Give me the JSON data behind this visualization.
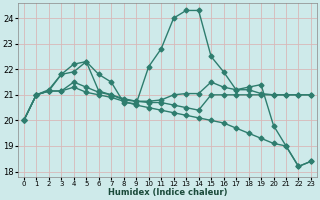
{
  "xlabel": "Humidex (Indice chaleur)",
  "bg_color": "#ceeaea",
  "grid_color": "#b8d8d8",
  "line_color": "#2e7d6e",
  "xlim": [
    -0.5,
    23.5
  ],
  "ylim": [
    17.8,
    24.6
  ],
  "yticks": [
    18,
    19,
    20,
    21,
    22,
    23,
    24
  ],
  "xticks": [
    0,
    1,
    2,
    3,
    4,
    5,
    6,
    7,
    8,
    9,
    10,
    11,
    12,
    13,
    14,
    15,
    16,
    17,
    18,
    19,
    20,
    21,
    22,
    23
  ],
  "series": [
    [
      20.0,
      21.0,
      21.2,
      21.8,
      22.2,
      22.3,
      21.8,
      21.5,
      20.7,
      20.65,
      22.1,
      22.8,
      24.0,
      24.3,
      24.3,
      22.5,
      21.9,
      21.2,
      21.3,
      21.4,
      19.8,
      19.0,
      18.2,
      18.4
    ],
    [
      20.0,
      21.0,
      21.15,
      21.8,
      21.9,
      22.3,
      21.15,
      21.0,
      20.8,
      20.75,
      20.75,
      20.8,
      21.0,
      21.05,
      21.05,
      21.5,
      21.3,
      21.2,
      21.2,
      21.05,
      21.0,
      21.0,
      21.0,
      21.0
    ],
    [
      20.0,
      21.0,
      21.15,
      21.15,
      21.5,
      21.3,
      21.1,
      21.0,
      20.85,
      20.75,
      20.7,
      20.7,
      20.6,
      20.5,
      20.4,
      21.0,
      21.0,
      21.0,
      21.0,
      21.0,
      21.0,
      21.0,
      21.0,
      21.0
    ],
    [
      20.0,
      21.0,
      21.15,
      21.15,
      21.3,
      21.1,
      21.0,
      20.9,
      20.75,
      20.6,
      20.5,
      20.4,
      20.3,
      20.2,
      20.1,
      20.0,
      19.9,
      19.7,
      19.5,
      19.3,
      19.1,
      19.0,
      18.2,
      18.4
    ]
  ],
  "marker": "D",
  "markersize": 2.5,
  "linewidth": 1.0
}
